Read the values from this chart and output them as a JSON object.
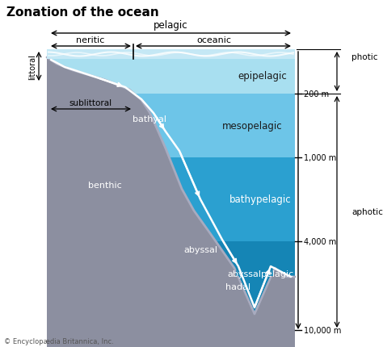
{
  "title": "Zonation of the ocean",
  "title_fontsize": 11,
  "bg_color": "#ffffff",
  "surface_water_color": "#c5e8f5",
  "epipelagic_color": "#a8dff0",
  "mesopelagic_color": "#6dc5e8",
  "bathypelagic_color": "#2ba0d0",
  "abyssalpelagic_color": "#1585b5",
  "seafloor_color": "#8c8fa0",
  "seafloor_light_color": "#a8abbf",
  "footer": "© Encyclopædia Britannica, Inc.",
  "depth_labels": [
    "200 m",
    "1,000 m",
    "4,000 m",
    "10,000 m"
  ],
  "zone_water_labels": [
    "epipelagic",
    "mesopelagic",
    "bathypelagic",
    "abyssalpelagic"
  ],
  "zone_benthic_labels": [
    "bathyal",
    "benthic",
    "abyssal",
    "hadal"
  ],
  "bracket_labels": [
    "pelagic",
    "neritic",
    "oceanic",
    "littoral",
    "sublittoral",
    "photic",
    "aphotic"
  ]
}
